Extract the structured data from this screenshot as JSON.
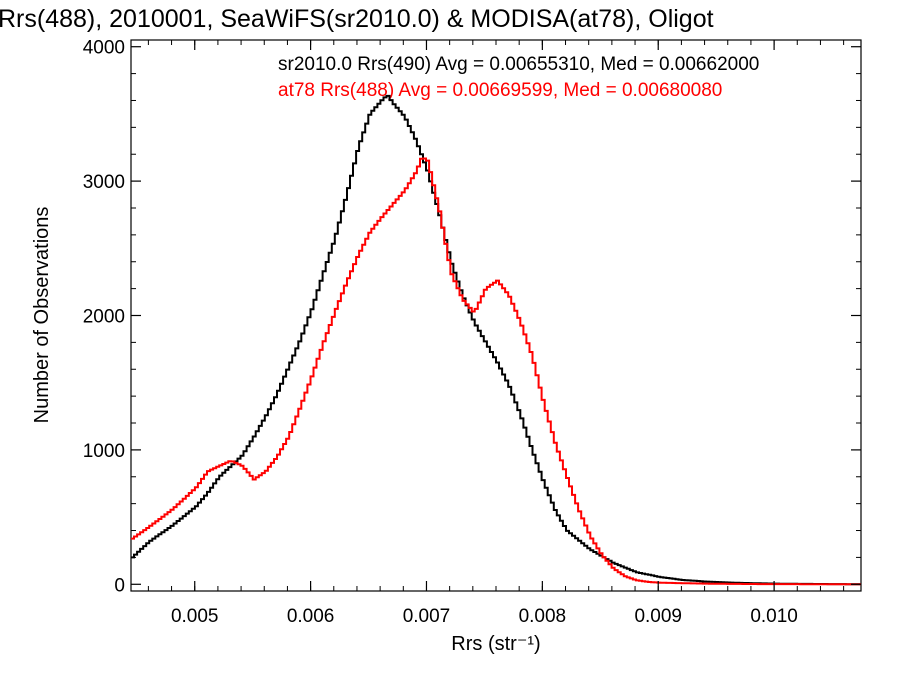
{
  "chart_data": {
    "type": "line",
    "title": "Rrs(488), 2010001, SeaWiFS(sr2010.0) & MODISA(at78), Oligot",
    "xlabel": "Rrs (str⁻¹)",
    "ylabel": "Number of Observations",
    "xlim": [
      0.00445,
      0.01075
    ],
    "ylim": [
      -50,
      4050
    ],
    "x_ticks": [
      "0.005",
      "0.006",
      "0.007",
      "0.008",
      "0.009",
      "0.010"
    ],
    "y_ticks": [
      "0",
      "1000",
      "2000",
      "3000",
      "4000"
    ],
    "x_tick_values": [
      0.005,
      0.006,
      0.007,
      0.008,
      0.009,
      0.01
    ],
    "y_tick_values": [
      0,
      1000,
      2000,
      3000,
      4000
    ],
    "grid": false,
    "annotations": [
      {
        "text": "sr2010.0 Rrs(490) Avg = 0.00655310, Med = 0.00662000",
        "color": "#000000"
      },
      {
        "text": "at78 Rrs(488) Avg = 0.00669599, Med = 0.00680080",
        "color": "#ff0000"
      }
    ],
    "series": [
      {
        "color": "#000000",
        "x": [
          0.00445,
          0.0046,
          0.0048,
          0.005,
          0.0051,
          0.0052,
          0.0053,
          0.0054,
          0.0055,
          0.0056,
          0.0057,
          0.0058,
          0.0059,
          0.006,
          0.0061,
          0.0062,
          0.0063,
          0.0064,
          0.0065,
          0.0066,
          0.00665,
          0.0067,
          0.0068,
          0.0069,
          0.007,
          0.0071,
          0.0072,
          0.0073,
          0.0074,
          0.0075,
          0.0076,
          0.0077,
          0.0078,
          0.0079,
          0.008,
          0.0081,
          0.0082,
          0.0084,
          0.0086,
          0.0088,
          0.009,
          0.0092,
          0.0094,
          0.0096,
          0.0098,
          0.01,
          0.0102,
          0.0104,
          0.0106,
          0.01075
        ],
        "y": [
          200,
          320,
          440,
          580,
          680,
          800,
          880,
          960,
          1100,
          1250,
          1420,
          1620,
          1820,
          2050,
          2320,
          2580,
          2900,
          3250,
          3500,
          3600,
          3640,
          3580,
          3480,
          3300,
          3070,
          2750,
          2400,
          2150,
          1950,
          1800,
          1650,
          1480,
          1260,
          1000,
          760,
          550,
          400,
          260,
          160,
          90,
          55,
          32,
          20,
          13,
          8,
          5,
          3,
          2,
          1,
          0
        ]
      },
      {
        "color": "#ff0000",
        "x": [
          0.00445,
          0.0046,
          0.0048,
          0.005,
          0.0051,
          0.0052,
          0.0053,
          0.0054,
          0.0055,
          0.0056,
          0.0057,
          0.0058,
          0.0059,
          0.006,
          0.0061,
          0.0062,
          0.0063,
          0.0064,
          0.0065,
          0.0066,
          0.0067,
          0.0068,
          0.0069,
          0.00695,
          0.007,
          0.0071,
          0.0072,
          0.0073,
          0.0074,
          0.0075,
          0.0076,
          0.0077,
          0.0078,
          0.0079,
          0.008,
          0.0081,
          0.0082,
          0.0083,
          0.0084,
          0.0085,
          0.0086,
          0.0087,
          0.0088,
          0.0089,
          0.009,
          0.0092,
          0.0094,
          0.0096,
          0.0098,
          0.01,
          0.0102,
          0.0104,
          0.01075
        ],
        "y": [
          340,
          430,
          560,
          720,
          840,
          880,
          920,
          880,
          780,
          840,
          950,
          1100,
          1320,
          1550,
          1800,
          2030,
          2250,
          2450,
          2620,
          2730,
          2830,
          2930,
          3070,
          3180,
          3150,
          2780,
          2320,
          2120,
          2020,
          2200,
          2260,
          2150,
          1950,
          1700,
          1350,
          1050,
          800,
          560,
          360,
          220,
          120,
          60,
          30,
          18,
          12,
          8,
          5,
          3,
          2,
          1,
          1,
          0,
          0
        ]
      }
    ]
  }
}
